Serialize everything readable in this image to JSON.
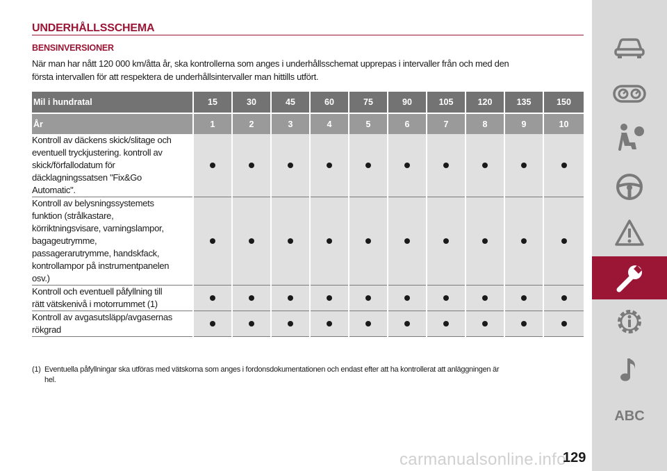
{
  "header": {
    "title": "UNDERHÅLLSSCHEMA",
    "subtitle": "BENSINVERSIONER",
    "intro_line1": "När man har nått 120 000 km/åtta år, ska kontrollerna som anges i underhållsschemat upprepas i intervaller från och med den",
    "intro_line2": "första intervallen för att respektera de underhållsintervaller man hittills utfört."
  },
  "table": {
    "mileage_label": "Mil i hundratal",
    "mileage": [
      "15",
      "30",
      "45",
      "60",
      "75",
      "90",
      "105",
      "120",
      "135",
      "150"
    ],
    "year_label": "År",
    "years": [
      "1",
      "2",
      "3",
      "4",
      "5",
      "6",
      "7",
      "8",
      "9",
      "10"
    ],
    "rows": [
      {
        "lines": [
          "Kontroll av däckens skick/slitage och",
          "eventuell tryckjustering. kontroll av",
          "skick/förfallodatum för",
          "däcklagningssatsen \"Fix&Go",
          "Automatic\"."
        ],
        "marks": [
          true,
          true,
          true,
          true,
          true,
          true,
          true,
          true,
          true,
          true
        ]
      },
      {
        "lines": [
          "Kontroll av belysningssystemets",
          "funktion (strålkastare,",
          "körriktningsvisare, varningslampor,",
          "bagageutrymme,",
          "passagerarutrymme, handskfack,",
          "kontrollampor på instrumentpanelen",
          "osv.)"
        ],
        "marks": [
          true,
          true,
          true,
          true,
          true,
          true,
          true,
          true,
          true,
          true
        ]
      },
      {
        "lines": [
          "Kontroll och eventuell påfyllning till",
          "rätt vätskenivå i motorrummet (1)"
        ],
        "marks": [
          true,
          true,
          true,
          true,
          true,
          true,
          true,
          true,
          true,
          true
        ]
      },
      {
        "lines": [
          "Kontroll av avgasutsläpp/avgasernas",
          "rökgrad"
        ],
        "marks": [
          true,
          true,
          true,
          true,
          true,
          true,
          true,
          true,
          true,
          true
        ]
      }
    ]
  },
  "footnote": {
    "marker": "(1)",
    "line1": "Eventuella påfyllningar ska utföras med vätskorna som anges i fordonsdokumentationen och endast efter att ha kontrollerat att anläggningen är",
    "line2": "hel."
  },
  "sidebar": {
    "items": [
      {
        "icon": "car-icon"
      },
      {
        "icon": "dashboard-gauges-icon"
      },
      {
        "icon": "airbag-seat-icon"
      },
      {
        "icon": "steering-wheel-icon"
      },
      {
        "icon": "warning-triangle-icon"
      },
      {
        "icon": "wrench-icon",
        "active": true
      },
      {
        "icon": "info-gear-icon"
      },
      {
        "icon": "music-note-icon"
      }
    ],
    "abc_label": "ABC",
    "active_color": "#9b1535",
    "icon_color": "#7a7a7a"
  },
  "page_number": "129",
  "watermark": "carmanualsonline.info"
}
